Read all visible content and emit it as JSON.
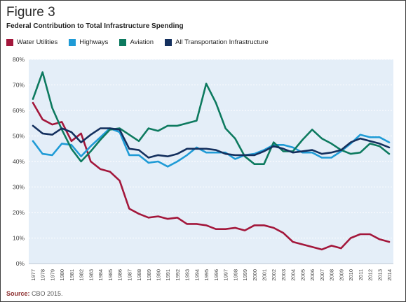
{
  "figure": {
    "title": "Figure 3",
    "subtitle": "Federal Contribution to Total Infrastructure Spending",
    "source_label": "Source:",
    "source_text": " CBO 2015."
  },
  "chart_data": {
    "type": "line",
    "title": "Federal Contribution to Total Infrastructure Spending",
    "xlabel": "",
    "ylabel": "",
    "ylim": [
      0,
      80
    ],
    "yticks": [
      "0%",
      "10%",
      "20%",
      "30%",
      "40%",
      "50%",
      "60%",
      "70%",
      "80%"
    ],
    "grid": true,
    "legend_position": "top-left",
    "x": [
      "1977",
      "1978",
      "1979",
      "1980",
      "1981",
      "1982",
      "1983",
      "1984",
      "1985",
      "1986",
      "1987",
      "1988",
      "1989",
      "1990",
      "1991",
      "1992",
      "1993",
      "1994",
      "1995",
      "1996",
      "1997",
      "1998",
      "1999",
      "2000",
      "2001",
      "2002",
      "2003",
      "2004",
      "2005",
      "2006",
      "2007",
      "2008",
      "2009",
      "2010",
      "2011",
      "2012",
      "2013",
      "2014"
    ],
    "series": [
      {
        "name": "Water Utilities",
        "color": "#a3173b",
        "values": [
          63,
          56.5,
          54.5,
          55.5,
          48,
          51,
          40,
          37,
          36,
          32.5,
          21.5,
          19.5,
          18,
          18.5,
          17.5,
          18,
          15.5,
          15.5,
          15,
          13.5,
          13.5,
          14,
          13,
          15,
          15,
          14,
          12,
          8.5,
          7.5,
          6.5,
          5.5,
          7,
          6,
          10,
          11.5,
          11.5,
          9.5,
          8.5
        ]
      },
      {
        "name": "Highways",
        "color": "#1f9bd6",
        "values": [
          48,
          43,
          42.5,
          47,
          46.5,
          42,
          46,
          49.5,
          53,
          51.5,
          42.5,
          42.5,
          39.5,
          40,
          38,
          40,
          42.5,
          45.5,
          43.5,
          43.5,
          43.5,
          41,
          42.5,
          43,
          44.5,
          46.5,
          46.5,
          45.5,
          43.5,
          43.5,
          41.5,
          41.5,
          44,
          47,
          50.5,
          49.5,
          49.5,
          47.5
        ]
      },
      {
        "name": "Aviation",
        "color": "#0d7a5f",
        "values": [
          64.5,
          75,
          61,
          52.5,
          45,
          40,
          44,
          48.5,
          52.5,
          53,
          50.5,
          48,
          53,
          52,
          54,
          54,
          55,
          56,
          70.5,
          63,
          53,
          49,
          42,
          39,
          39,
          47.5,
          44,
          44,
          48.5,
          52.5,
          49,
          47,
          44.5,
          43,
          43.5,
          47,
          46,
          43
        ]
      },
      {
        "name": "All Transportation Infrastructure",
        "color": "#14305e",
        "values": [
          54,
          51,
          50.5,
          53,
          51.5,
          47.5,
          50.5,
          53,
          53,
          52.5,
          45,
          44.5,
          41.5,
          42.5,
          42,
          43,
          45,
          45,
          45,
          44.5,
          43,
          42.5,
          42.5,
          42.5,
          44,
          46,
          45,
          43.5,
          44,
          44.5,
          43,
          43.5,
          44.5,
          47.5,
          49,
          48,
          47,
          45.5
        ]
      }
    ]
  }
}
